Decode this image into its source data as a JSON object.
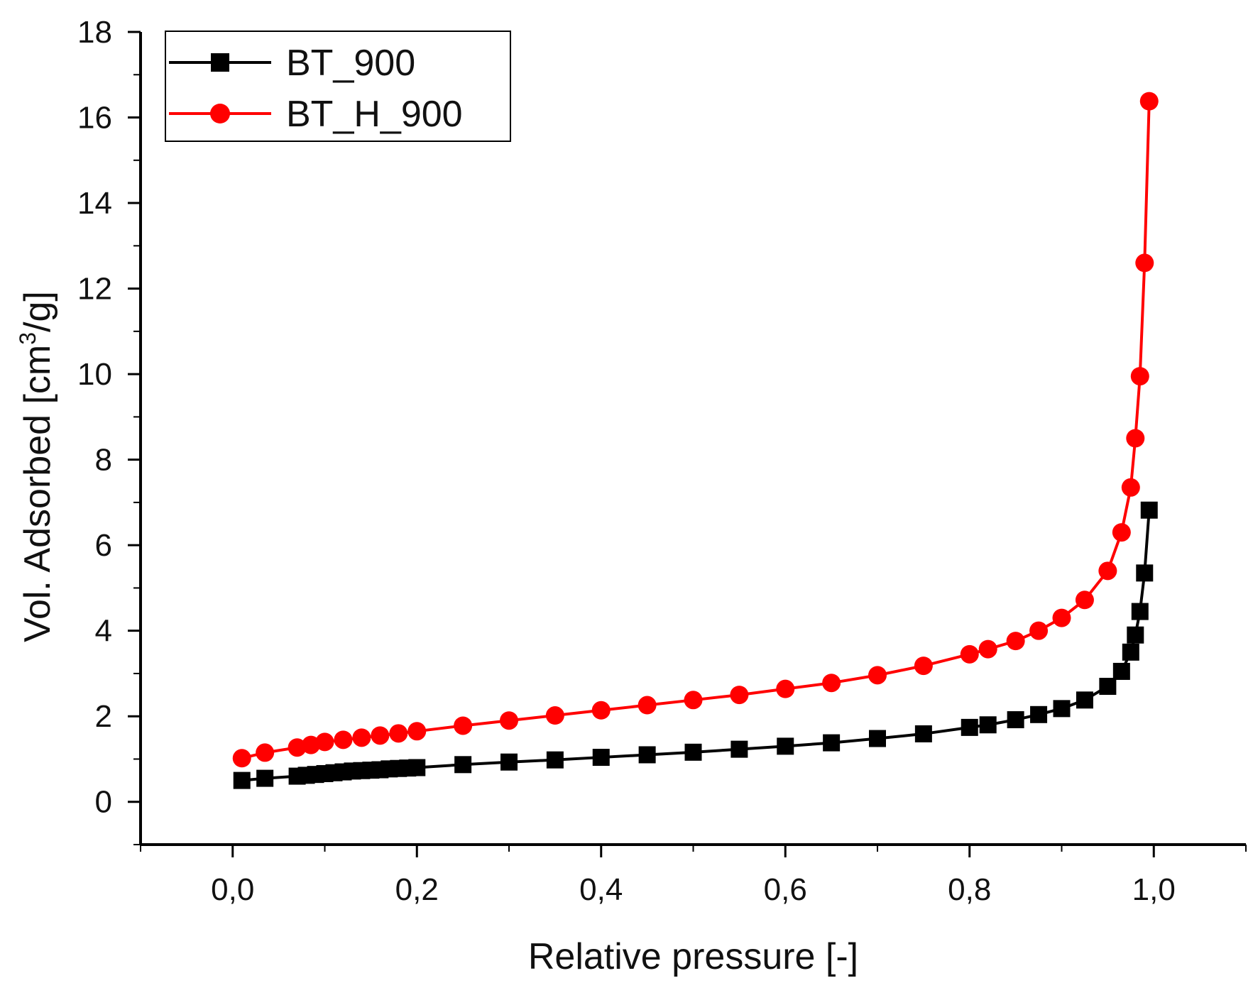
{
  "chart_data": {
    "type": "line",
    "title": "",
    "xlabel": "Relative pressure [-]",
    "ylabel_main": "Vol. Adsorbed [cm",
    "ylabel_sup": "3",
    "ylabel_tail": "/g]",
    "xlim": [
      -0.1,
      1.1
    ],
    "ylim": [
      -1,
      18
    ],
    "x_ticks": [
      0.0,
      0.2,
      0.4,
      0.6,
      0.8,
      1.0
    ],
    "x_tick_labels": [
      "0,0",
      "0,2",
      "0,4",
      "0,6",
      "0,8",
      "1,0"
    ],
    "y_ticks": [
      0,
      2,
      4,
      6,
      8,
      10,
      12,
      14,
      16,
      18
    ],
    "y_tick_labels": [
      "0",
      "2",
      "4",
      "6",
      "8",
      "10",
      "12",
      "14",
      "16",
      "18"
    ],
    "grid": false,
    "legend_position": "top-left",
    "series": [
      {
        "name": "BT_900",
        "color": "#000000",
        "marker": "square",
        "x": [
          0.01,
          0.035,
          0.07,
          0.08,
          0.09,
          0.1,
          0.11,
          0.12,
          0.13,
          0.14,
          0.15,
          0.16,
          0.17,
          0.18,
          0.19,
          0.2,
          0.25,
          0.3,
          0.35,
          0.4,
          0.45,
          0.5,
          0.55,
          0.6,
          0.65,
          0.7,
          0.75,
          0.8,
          0.82,
          0.85,
          0.875,
          0.9,
          0.925,
          0.95,
          0.965,
          0.975,
          0.98,
          0.985,
          0.99,
          0.995
        ],
        "y": [
          0.5,
          0.55,
          0.6,
          0.62,
          0.64,
          0.66,
          0.68,
          0.7,
          0.72,
          0.73,
          0.74,
          0.75,
          0.77,
          0.78,
          0.79,
          0.8,
          0.87,
          0.93,
          0.98,
          1.04,
          1.1,
          1.16,
          1.23,
          1.3,
          1.38,
          1.48,
          1.59,
          1.74,
          1.8,
          1.92,
          2.04,
          2.18,
          2.38,
          2.7,
          3.05,
          3.5,
          3.9,
          4.45,
          5.35,
          6.82
        ]
      },
      {
        "name": "BT_H_900",
        "color": "#ff0000",
        "marker": "circle",
        "x": [
          0.01,
          0.035,
          0.07,
          0.085,
          0.1,
          0.12,
          0.14,
          0.16,
          0.18,
          0.2,
          0.25,
          0.3,
          0.35,
          0.4,
          0.45,
          0.5,
          0.55,
          0.6,
          0.65,
          0.7,
          0.75,
          0.8,
          0.82,
          0.85,
          0.875,
          0.9,
          0.925,
          0.95,
          0.965,
          0.975,
          0.98,
          0.985,
          0.99,
          0.995
        ],
        "y": [
          1.02,
          1.15,
          1.27,
          1.33,
          1.4,
          1.45,
          1.5,
          1.55,
          1.6,
          1.65,
          1.78,
          1.9,
          2.02,
          2.14,
          2.26,
          2.38,
          2.5,
          2.64,
          2.78,
          2.96,
          3.18,
          3.45,
          3.57,
          3.76,
          4.0,
          4.3,
          4.72,
          5.4,
          6.3,
          7.35,
          8.5,
          9.95,
          12.6,
          16.38
        ]
      }
    ]
  }
}
